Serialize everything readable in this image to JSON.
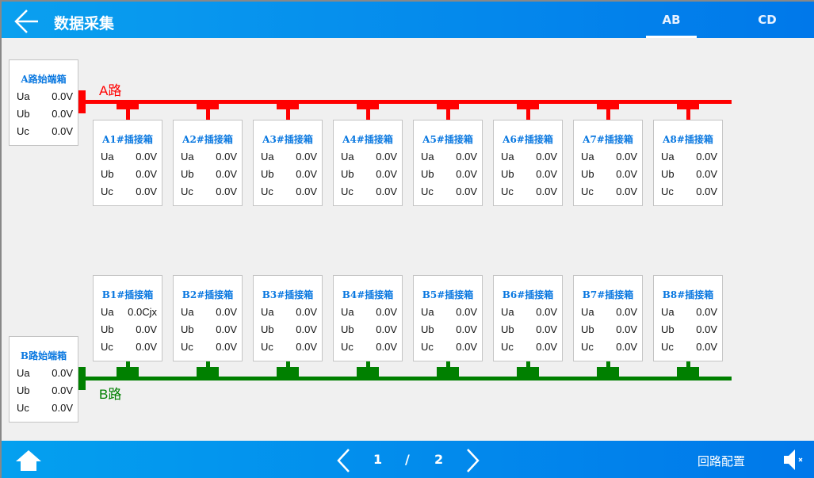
{
  "header": {
    "title": "数据采集",
    "tabs": [
      {
        "label": "AB",
        "active": true
      },
      {
        "label": "CD",
        "active": false
      }
    ]
  },
  "colors": {
    "a_line": "#ff0000",
    "b_line": "#008000",
    "title_blue": "#0a78e0"
  },
  "a_route": {
    "label": "A路",
    "start_box": {
      "title": "A路始端箱",
      "rows": [
        {
          "k": "Ua",
          "v": "0.0V"
        },
        {
          "k": "Ub",
          "v": "0.0V"
        },
        {
          "k": "Uc",
          "v": "0.0V"
        }
      ]
    },
    "boxes": [
      {
        "title": "A1#插接箱",
        "rows": [
          {
            "k": "Ua",
            "v": "0.0V"
          },
          {
            "k": "Ub",
            "v": "0.0V"
          },
          {
            "k": "Uc",
            "v": "0.0V"
          }
        ]
      },
      {
        "title": "A2#插接箱",
        "rows": [
          {
            "k": "Ua",
            "v": "0.0V"
          },
          {
            "k": "Ub",
            "v": "0.0V"
          },
          {
            "k": "Uc",
            "v": "0.0V"
          }
        ]
      },
      {
        "title": "A3#插接箱",
        "rows": [
          {
            "k": "Ua",
            "v": "0.0V"
          },
          {
            "k": "Ub",
            "v": "0.0V"
          },
          {
            "k": "Uc",
            "v": "0.0V"
          }
        ]
      },
      {
        "title": "A4#插接箱",
        "rows": [
          {
            "k": "Ua",
            "v": "0.0V"
          },
          {
            "k": "Ub",
            "v": "0.0V"
          },
          {
            "k": "Uc",
            "v": "0.0V"
          }
        ]
      },
      {
        "title": "A5#插接箱",
        "rows": [
          {
            "k": "Ua",
            "v": "0.0V"
          },
          {
            "k": "Ub",
            "v": "0.0V"
          },
          {
            "k": "Uc",
            "v": "0.0V"
          }
        ]
      },
      {
        "title": "A6#插接箱",
        "rows": [
          {
            "k": "Ua",
            "v": "0.0V"
          },
          {
            "k": "Ub",
            "v": "0.0V"
          },
          {
            "k": "Uc",
            "v": "0.0V"
          }
        ]
      },
      {
        "title": "A7#插接箱",
        "rows": [
          {
            "k": "Ua",
            "v": "0.0V"
          },
          {
            "k": "Ub",
            "v": "0.0V"
          },
          {
            "k": "Uc",
            "v": "0.0V"
          }
        ]
      },
      {
        "title": "A8#插接箱",
        "rows": [
          {
            "k": "Ua",
            "v": "0.0V"
          },
          {
            "k": "Ub",
            "v": "0.0V"
          },
          {
            "k": "Uc",
            "v": "0.0V"
          }
        ]
      }
    ]
  },
  "b_route": {
    "label": "B路",
    "start_box": {
      "title": "B路始端箱",
      "rows": [
        {
          "k": "Ua",
          "v": "0.0V"
        },
        {
          "k": "Ub",
          "v": "0.0V"
        },
        {
          "k": "Uc",
          "v": "0.0V"
        }
      ]
    },
    "boxes": [
      {
        "title": "B1#插接箱",
        "rows": [
          {
            "k": "Ua",
            "v": "0.0Cjx"
          },
          {
            "k": "Ub",
            "v": "0.0V"
          },
          {
            "k": "Uc",
            "v": "0.0V"
          }
        ]
      },
      {
        "title": "B2#插接箱",
        "rows": [
          {
            "k": "Ua",
            "v": "0.0V"
          },
          {
            "k": "Ub",
            "v": "0.0V"
          },
          {
            "k": "Uc",
            "v": "0.0V"
          }
        ]
      },
      {
        "title": "B3#插接箱",
        "rows": [
          {
            "k": "Ua",
            "v": "0.0V"
          },
          {
            "k": "Ub",
            "v": "0.0V"
          },
          {
            "k": "Uc",
            "v": "0.0V"
          }
        ]
      },
      {
        "title": "B4#插接箱",
        "rows": [
          {
            "k": "Ua",
            "v": "0.0V"
          },
          {
            "k": "Ub",
            "v": "0.0V"
          },
          {
            "k": "Uc",
            "v": "0.0V"
          }
        ]
      },
      {
        "title": "B5#插接箱",
        "rows": [
          {
            "k": "Ua",
            "v": "0.0V"
          },
          {
            "k": "Ub",
            "v": "0.0V"
          },
          {
            "k": "Uc",
            "v": "0.0V"
          }
        ]
      },
      {
        "title": "B6#插接箱",
        "rows": [
          {
            "k": "Ua",
            "v": "0.0V"
          },
          {
            "k": "Ub",
            "v": "0.0V"
          },
          {
            "k": "Uc",
            "v": "0.0V"
          }
        ]
      },
      {
        "title": "B7#插接箱",
        "rows": [
          {
            "k": "Ua",
            "v": "0.0V"
          },
          {
            "k": "Ub",
            "v": "0.0V"
          },
          {
            "k": "Uc",
            "v": "0.0V"
          }
        ]
      },
      {
        "title": "B8#插接箱",
        "rows": [
          {
            "k": "Ua",
            "v": "0.0V"
          },
          {
            "k": "Ub",
            "v": "0.0V"
          },
          {
            "k": "Uc",
            "v": "0.0V"
          }
        ]
      }
    ]
  },
  "footer": {
    "page_current": "1",
    "page_sep": "/",
    "page_total": "2",
    "config_label": "回路配置",
    "icons": [
      "home-icon",
      "chevron-left-icon",
      "chevron-right-icon",
      "speaker-muted-icon"
    ]
  }
}
